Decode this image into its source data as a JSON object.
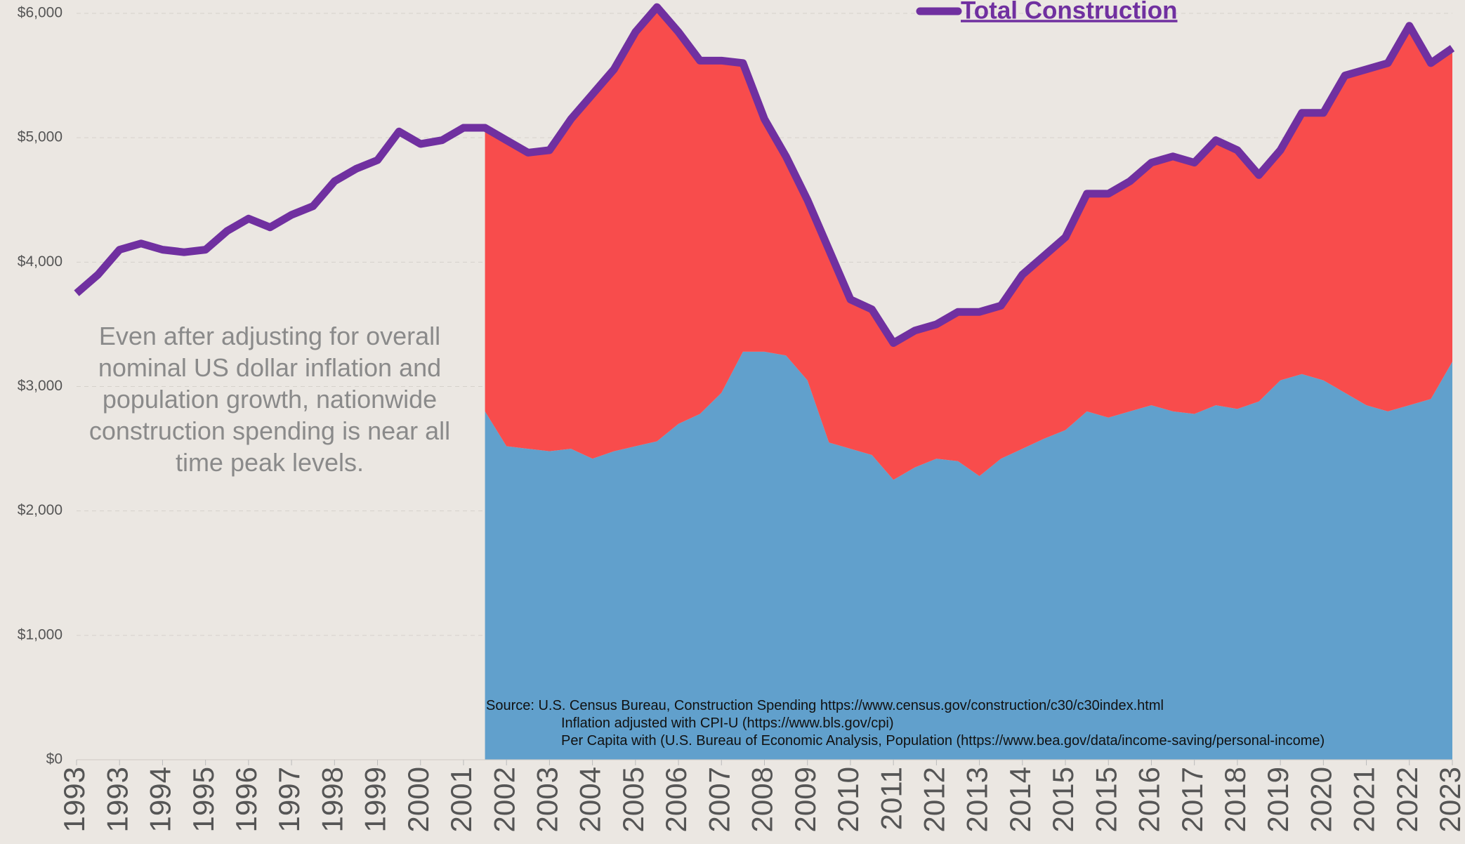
{
  "chart_data": {
    "type": "area",
    "legend_label": "Total Construction",
    "annotation": "Even after adjusting for overall nominal US dollar inflation and population growth, nationwide construction spending is near all time peak levels.",
    "source": [
      "Source: U.S. Census Bureau, Construction Spending https://www.census.gov/construction/c30/c30index.html",
      "Inflation adjusted with CPI-U (https://www.bls.gov/cpi)",
      "Per Capita with (U.S. Bureau of Economic Analysis, Population (https://www.bea.gov/data/income-saving/personal-income)"
    ],
    "categories": [
      "1993",
      null,
      "1993",
      null,
      "1994",
      null,
      "1995",
      null,
      "1996",
      null,
      "1997",
      null,
      "1998",
      null,
      "1999",
      null,
      "2000",
      null,
      "2001",
      null,
      "2002",
      null,
      "2003",
      null,
      "2004",
      null,
      "2005",
      null,
      "2006",
      null,
      "2007",
      null,
      "2008",
      null,
      "2009",
      null,
      "2010",
      null,
      "2011",
      null,
      "2012",
      null,
      "2013",
      null,
      "2014",
      null,
      "2015",
      null,
      "2015",
      null,
      "2016",
      null,
      "2017",
      null,
      "2018",
      null,
      "2019",
      null,
      "2020",
      null,
      "2021",
      null,
      "2022",
      null,
      "2023"
    ],
    "series": [
      {
        "color": "#61a0cc",
        "values": [
          null,
          null,
          null,
          null,
          null,
          null,
          null,
          null,
          null,
          null,
          null,
          null,
          null,
          null,
          null,
          null,
          null,
          null,
          null,
          2800,
          2520,
          2500,
          2480,
          2500,
          2420,
          2480,
          2520,
          2560,
          2700,
          2780,
          2950,
          3280,
          3280,
          3250,
          3050,
          2550,
          2500,
          2450,
          2250,
          2350,
          2420,
          2400,
          2280,
          2420,
          2500,
          2580,
          2650,
          2800,
          2750,
          2800,
          2850,
          2800,
          2780,
          2850,
          2820,
          2880,
          3050,
          3100,
          3050,
          2950,
          2850,
          2800,
          2850,
          2900,
          3200
        ]
      },
      {
        "color": "#f84c4c",
        "values": [
          null,
          null,
          null,
          null,
          null,
          null,
          null,
          null,
          null,
          null,
          null,
          null,
          null,
          null,
          null,
          null,
          null,
          null,
          null,
          2280,
          2460,
          2380,
          2420,
          2650,
          2930,
          3070,
          3330,
          3490,
          3150,
          2840,
          2670,
          2320,
          1870,
          1600,
          1450,
          1550,
          1200,
          1170,
          1100,
          1100,
          1080,
          1200,
          1320,
          1230,
          1400,
          1470,
          1550,
          1750,
          1800,
          1850,
          1950,
          2050,
          2020,
          2130,
          2080,
          1820,
          1850,
          2100,
          2150,
          2550,
          2700,
          2800,
          3050,
          2700,
          2520
        ]
      },
      {
        "name": "Total Construction",
        "color": "#7030a0",
        "values": [
          3750,
          3900,
          4100,
          4150,
          4100,
          4080,
          4100,
          4250,
          4350,
          4280,
          4380,
          4450,
          4650,
          4750,
          4820,
          5050,
          4950,
          4980,
          5080,
          5080,
          4980,
          4880,
          4900,
          5150,
          5350,
          5550,
          5850,
          6050,
          5850,
          5620,
          5620,
          5600,
          5150,
          4850,
          4500,
          4100,
          3700,
          3620,
          3350,
          3450,
          3500,
          3600,
          3600,
          3650,
          3900,
          4050,
          4200,
          4550,
          4550,
          4650,
          4800,
          4850,
          4800,
          4980,
          4900,
          4700,
          4900,
          5200,
          5200,
          5500,
          5550,
          5600,
          5900,
          5600,
          5720
        ]
      }
    ],
    "ylim": [
      0,
      6000
    ],
    "yticks": [
      {
        "value": 0,
        "label": "$0"
      },
      {
        "value": 1000,
        "label": "$1,000"
      },
      {
        "value": 2000,
        "label": "$2,000"
      },
      {
        "value": 3000,
        "label": "$3,000"
      },
      {
        "value": 4000,
        "label": "$4,000"
      },
      {
        "value": 5000,
        "label": "$5,000"
      },
      {
        "value": 6000,
        "label": "$6,000"
      }
    ],
    "grid": true
  }
}
